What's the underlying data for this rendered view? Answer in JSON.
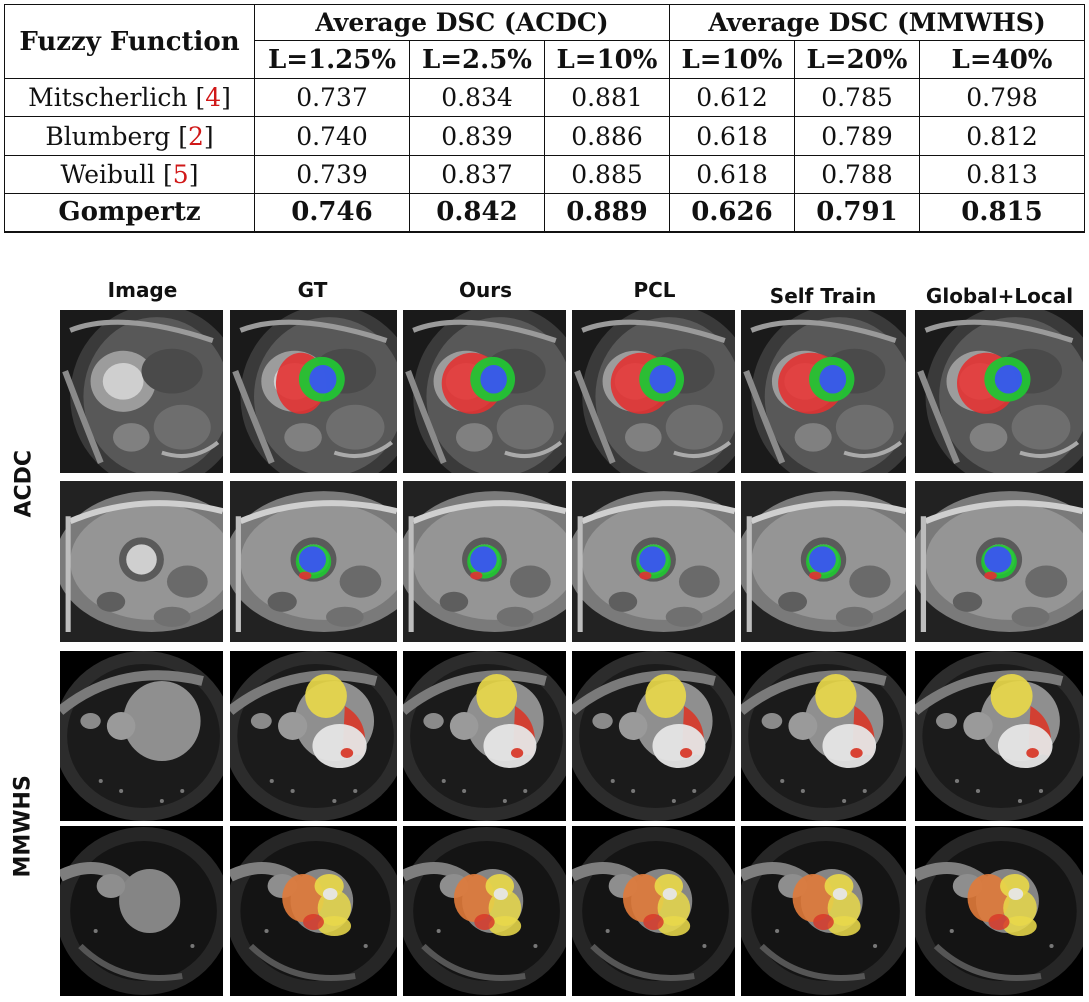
{
  "table": {
    "header_first": "Fuzzy Function",
    "group_acdc": "Average DSC (ACDC)",
    "group_mmwhs": "Average DSC (MMWHS)",
    "sub_headers": [
      "L=1.25%",
      "L=2.5%",
      "L=10%",
      "L=10%",
      "L=20%",
      "L=40%"
    ],
    "rows": [
      {
        "name": "Mitscherlich",
        "cite": "4",
        "values": [
          "0.737",
          "0.834",
          "0.881",
          "0.612",
          "0.785",
          "0.798"
        ]
      },
      {
        "name": "Blumberg",
        "cite": "2",
        "values": [
          "0.740",
          "0.839",
          "0.886",
          "0.618",
          "0.789",
          "0.812"
        ]
      },
      {
        "name": "Weibull",
        "cite": "5",
        "values": [
          "0.739",
          "0.837",
          "0.885",
          "0.618",
          "0.788",
          "0.813"
        ]
      },
      {
        "name": "Gompertz",
        "cite": "",
        "values": [
          "0.746",
          "0.842",
          "0.889",
          "0.626",
          "0.791",
          "0.815"
        ]
      }
    ]
  },
  "grid": {
    "columns": [
      "Image",
      "GT",
      "Ours",
      "PCL",
      "Self Train",
      "Global+Local"
    ],
    "row_groups": [
      "ACDC",
      "MMWHS"
    ]
  },
  "colors": {
    "acdc_rv": "#e23232",
    "acdc_myo": "#22c434",
    "acdc_lv": "#3a55f0",
    "mmwhs_yellow": "#e8d84a",
    "mmwhs_red": "#d83a2a",
    "mmwhs_white": "#e6e6e6",
    "mmwhs_orange": "#e07a3a"
  }
}
